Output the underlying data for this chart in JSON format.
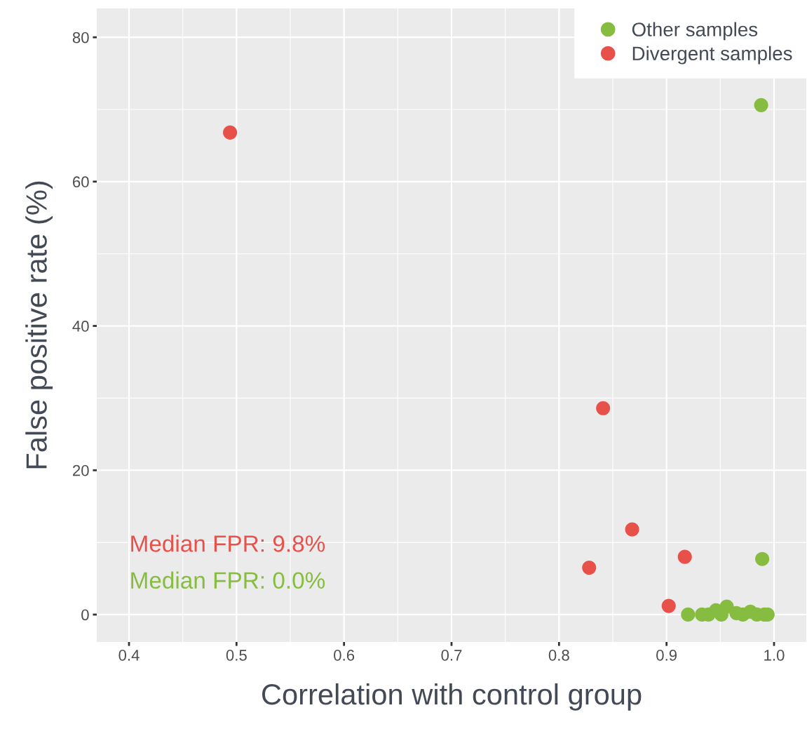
{
  "chart_data": {
    "type": "scatter",
    "xlabel": "Correlation with control group",
    "ylabel": "False positive rate (%)",
    "series": [
      {
        "name": "Other samples",
        "color": "#86bc3f",
        "x": [
          0.988,
          0.989,
          0.92,
          0.933,
          0.939,
          0.946,
          0.951,
          0.956,
          0.965,
          0.971,
          0.978,
          0.984,
          0.991,
          0.994
        ],
        "values": [
          70.6,
          7.7,
          0,
          0,
          0,
          0.6,
          0,
          1.1,
          0.2,
          0,
          0.4,
          0,
          0,
          0
        ]
      },
      {
        "name": "Divergent samples",
        "color": "#e8504a",
        "x": [
          0.494,
          0.841,
          0.868,
          0.828,
          0.917,
          0.902
        ],
        "values": [
          66.8,
          28.6,
          11.8,
          6.5,
          8.0,
          1.2
        ]
      }
    ],
    "annotations": [
      "Median FPR: 9.8%",
      "Median FPR: 0.0%"
    ],
    "xlim": [
      0.37,
      1.03
    ],
    "xticks": [
      {
        "value": 0.4,
        "label": "0.4"
      },
      {
        "value": 0.5,
        "label": "0.5"
      },
      {
        "value": 0.6,
        "label": "0.6"
      },
      {
        "value": 0.7,
        "label": "0.7"
      },
      {
        "value": 0.8,
        "label": "0.8"
      },
      {
        "value": 0.9,
        "label": "0.9"
      },
      {
        "value": 1.0,
        "label": "1.0"
      }
    ],
    "ylim": [
      -3.8,
      84
    ],
    "yticks": [
      0,
      20,
      40,
      60,
      80
    ],
    "grid": true,
    "legend": "top right",
    "marker": "circle"
  }
}
